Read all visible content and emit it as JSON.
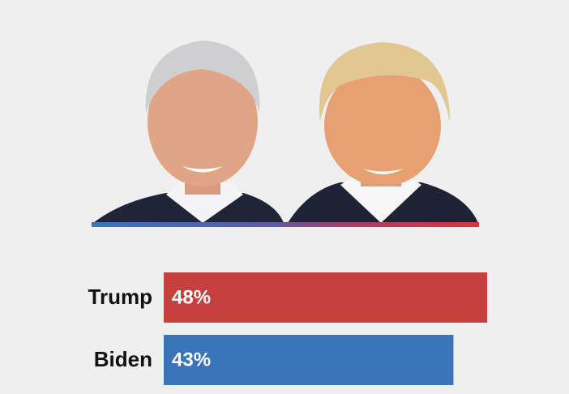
{
  "chart_data": {
    "type": "bar",
    "orientation": "horizontal",
    "categories": [
      "Trump",
      "Biden"
    ],
    "values": [
      48,
      43
    ],
    "value_labels": [
      "48%",
      "43%"
    ],
    "colors": [
      "#c5403f",
      "#3a75b9"
    ]
  }
}
